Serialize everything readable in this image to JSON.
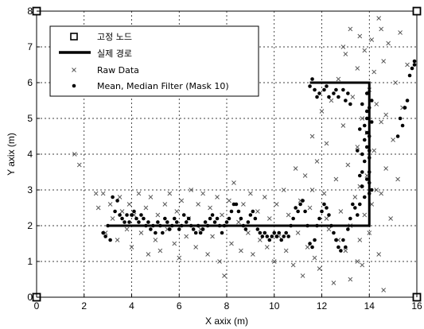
{
  "chart_data": {
    "type": "scatter",
    "title": "",
    "xlabel": "X axix (m)",
    "ylabel": "Y axix (m)",
    "xlim": [
      0,
      16
    ],
    "ylim": [
      0,
      8
    ],
    "xticks": [
      0,
      2,
      4,
      6,
      8,
      10,
      12,
      14,
      16
    ],
    "yticks": [
      0,
      1,
      2,
      3,
      4,
      5,
      6,
      7,
      8
    ],
    "grid": true,
    "legend_position": "top-left",
    "series": [
      {
        "name": "고정 노드",
        "marker": "square",
        "color": "#000000",
        "points": [
          [
            0,
            0
          ],
          [
            0,
            8
          ],
          [
            16,
            8
          ],
          [
            16,
            0
          ]
        ]
      },
      {
        "name": "실제 경로",
        "marker": "line",
        "color": "#000000",
        "points": [
          [
            3,
            2
          ],
          [
            14,
            2
          ],
          [
            14,
            6
          ],
          [
            11.5,
            6
          ]
        ]
      },
      {
        "name": "Raw Data",
        "marker": "x",
        "color": "#555555",
        "points": [
          [
            1.6,
            4.0
          ],
          [
            1.8,
            3.7
          ],
          [
            2.5,
            2.9
          ],
          [
            2.6,
            2.5
          ],
          [
            2.8,
            2.9
          ],
          [
            2.9,
            1.8
          ],
          [
            3.1,
            2.6
          ],
          [
            3.2,
            2.2
          ],
          [
            3.4,
            1.6
          ],
          [
            3.5,
            2.8
          ],
          [
            3.6,
            2.4
          ],
          [
            3.8,
            1.9
          ],
          [
            3.9,
            2.6
          ],
          [
            4.0,
            1.4
          ],
          [
            4.1,
            2.3
          ],
          [
            4.3,
            2.9
          ],
          [
            4.4,
            1.8
          ],
          [
            4.6,
            2.5
          ],
          [
            4.7,
            1.2
          ],
          [
            4.8,
            2.8
          ],
          [
            5.0,
            1.6
          ],
          [
            5.1,
            2.3
          ],
          [
            5.2,
            1.3
          ],
          [
            5.4,
            2.6
          ],
          [
            5.5,
            1.9
          ],
          [
            5.6,
            2.9
          ],
          [
            5.8,
            1.5
          ],
          [
            5.9,
            2.4
          ],
          [
            6.0,
            1.1
          ],
          [
            6.1,
            2.7
          ],
          [
            6.3,
            1.7
          ],
          [
            6.4,
            2.2
          ],
          [
            6.5,
            3.0
          ],
          [
            6.7,
            1.4
          ],
          [
            6.8,
            2.6
          ],
          [
            6.9,
            1.9
          ],
          [
            7.0,
            2.9
          ],
          [
            7.2,
            1.2
          ],
          [
            7.3,
            2.5
          ],
          [
            7.4,
            1.7
          ],
          [
            7.6,
            2.8
          ],
          [
            7.7,
            1.0
          ],
          [
            7.8,
            2.3
          ],
          [
            7.9,
            0.6
          ],
          [
            8.1,
            2.7
          ],
          [
            8.2,
            1.5
          ],
          [
            8.3,
            3.2
          ],
          [
            8.5,
            2.1
          ],
          [
            8.6,
            1.3
          ],
          [
            8.7,
            2.6
          ],
          [
            8.9,
            1.8
          ],
          [
            9.0,
            2.9
          ],
          [
            9.1,
            1.2
          ],
          [
            9.3,
            2.4
          ],
          [
            9.4,
            1.6
          ],
          [
            9.6,
            2.8
          ],
          [
            9.7,
            1.4
          ],
          [
            9.8,
            2.2
          ],
          [
            10.0,
            1.0
          ],
          [
            10.1,
            2.6
          ],
          [
            10.2,
            1.7
          ],
          [
            10.4,
            3.0
          ],
          [
            10.5,
            1.3
          ],
          [
            10.6,
            2.3
          ],
          [
            10.8,
            0.9
          ],
          [
            10.9,
            3.6
          ],
          [
            11.0,
            1.8
          ],
          [
            11.1,
            2.7
          ],
          [
            11.2,
            0.6
          ],
          [
            11.3,
            3.4
          ],
          [
            11.4,
            1.4
          ],
          [
            11.5,
            2.5
          ],
          [
            11.6,
            4.5
          ],
          [
            11.7,
            1.1
          ],
          [
            11.8,
            3.8
          ],
          [
            11.9,
            0.8
          ],
          [
            12.0,
            5.2
          ],
          [
            12.1,
            2.9
          ],
          [
            12.2,
            4.3
          ],
          [
            12.3,
            1.9
          ],
          [
            12.4,
            5.5
          ],
          [
            12.5,
            0.4
          ],
          [
            12.6,
            3.3
          ],
          [
            12.7,
            6.1
          ],
          [
            12.8,
            2.4
          ],
          [
            12.9,
            4.8
          ],
          [
            13.0,
            1.3
          ],
          [
            13.0,
            6.8
          ],
          [
            13.1,
            3.7
          ],
          [
            13.2,
            0.5
          ],
          [
            13.2,
            7.5
          ],
          [
            13.3,
            5.6
          ],
          [
            13.4,
            2.8
          ],
          [
            13.5,
            4.2
          ],
          [
            13.5,
            6.4
          ],
          [
            13.6,
            1.6
          ],
          [
            13.6,
            3.1
          ],
          [
            13.7,
            5.0
          ],
          [
            13.7,
            0.9
          ],
          [
            13.8,
            6.9
          ],
          [
            13.8,
            2.3
          ],
          [
            13.9,
            4.6
          ],
          [
            13.9,
            3.4
          ],
          [
            14.0,
            5.8
          ],
          [
            14.0,
            1.8
          ],
          [
            14.1,
            7.2
          ],
          [
            14.1,
            2.6
          ],
          [
            14.2,
            4.1
          ],
          [
            14.2,
            6.3
          ],
          [
            14.3,
            3.0
          ],
          [
            14.3,
            5.4
          ],
          [
            14.4,
            1.2
          ],
          [
            14.4,
            7.8
          ],
          [
            14.5,
            2.9
          ],
          [
            14.5,
            4.9
          ],
          [
            14.6,
            0.2
          ],
          [
            14.6,
            6.6
          ],
          [
            14.7,
            3.6
          ],
          [
            14.7,
            5.1
          ],
          [
            14.8,
            7.1
          ],
          [
            14.9,
            2.2
          ],
          [
            15.0,
            4.4
          ],
          [
            15.1,
            6.0
          ],
          [
            15.2,
            3.3
          ],
          [
            15.3,
            7.4
          ],
          [
            15.4,
            5.3
          ],
          [
            15.6,
            6.5
          ],
          [
            13.5,
            1.0
          ],
          [
            13.2,
            2.0
          ],
          [
            12.7,
            1.6
          ],
          [
            11.6,
            3.0
          ],
          [
            12.2,
            2.2
          ],
          [
            13.6,
            7.3
          ],
          [
            12.9,
            7.0
          ],
          [
            14.5,
            7.5
          ]
        ]
      },
      {
        "name": "Mean, Median Filter (Mask 10)",
        "marker": "dot",
        "color": "#000000",
        "points": [
          [
            2.8,
            1.8
          ],
          [
            2.9,
            1.7
          ],
          [
            3.0,
            2.0
          ],
          [
            3.1,
            1.6
          ],
          [
            3.2,
            2.8
          ],
          [
            3.3,
            2.4
          ],
          [
            3.4,
            2.7
          ],
          [
            3.5,
            2.3
          ],
          [
            3.6,
            2.2
          ],
          [
            3.7,
            2.1
          ],
          [
            3.8,
            2.3
          ],
          [
            3.9,
            2.1
          ],
          [
            4.0,
            2.3
          ],
          [
            4.1,
            2.4
          ],
          [
            4.2,
            2.2
          ],
          [
            4.3,
            2.1
          ],
          [
            4.4,
            2.3
          ],
          [
            4.5,
            2.2
          ],
          [
            4.6,
            2.0
          ],
          [
            4.7,
            2.1
          ],
          [
            4.8,
            1.9
          ],
          [
            4.9,
            2.0
          ],
          [
            5.0,
            1.8
          ],
          [
            5.1,
            2.1
          ],
          [
            5.2,
            2.0
          ],
          [
            5.3,
            1.8
          ],
          [
            5.4,
            2.2
          ],
          [
            5.5,
            2.1
          ],
          [
            5.6,
            1.9
          ],
          [
            5.7,
            2.0
          ],
          [
            5.8,
            2.2
          ],
          [
            5.9,
            2.1
          ],
          [
            6.0,
            1.9
          ],
          [
            6.1,
            2.0
          ],
          [
            6.2,
            2.3
          ],
          [
            6.3,
            2.1
          ],
          [
            6.4,
            2.2
          ],
          [
            6.5,
            2.0
          ],
          [
            6.6,
            1.9
          ],
          [
            6.7,
            1.8
          ],
          [
            6.8,
            2.0
          ],
          [
            6.9,
            1.8
          ],
          [
            7.0,
            1.9
          ],
          [
            7.1,
            2.1
          ],
          [
            7.2,
            2.0
          ],
          [
            7.3,
            2.2
          ],
          [
            7.4,
            2.3
          ],
          [
            7.5,
            2.1
          ],
          [
            7.6,
            2.2
          ],
          [
            7.7,
            2.0
          ],
          [
            7.8,
            1.8
          ],
          [
            7.9,
            2.0
          ],
          [
            8.0,
            2.1
          ],
          [
            8.1,
            2.2
          ],
          [
            8.2,
            2.4
          ],
          [
            8.3,
            2.6
          ],
          [
            8.4,
            2.6
          ],
          [
            8.5,
            2.4
          ],
          [
            8.6,
            2.2
          ],
          [
            8.7,
            2.0
          ],
          [
            8.8,
            1.9
          ],
          [
            8.9,
            2.1
          ],
          [
            9.0,
            2.3
          ],
          [
            9.1,
            2.4
          ],
          [
            9.2,
            2.2
          ],
          [
            9.3,
            1.9
          ],
          [
            9.4,
            1.8
          ],
          [
            9.5,
            1.7
          ],
          [
            9.6,
            1.8
          ],
          [
            9.7,
            1.7
          ],
          [
            9.8,
            1.6
          ],
          [
            9.9,
            1.7
          ],
          [
            10.0,
            1.8
          ],
          [
            10.1,
            1.7
          ],
          [
            10.2,
            1.8
          ],
          [
            10.3,
            1.6
          ],
          [
            10.4,
            1.7
          ],
          [
            10.5,
            1.8
          ],
          [
            10.6,
            1.7
          ],
          [
            10.7,
            2.0
          ],
          [
            10.8,
            2.2
          ],
          [
            10.9,
            2.5
          ],
          [
            11.0,
            2.4
          ],
          [
            11.1,
            2.6
          ],
          [
            11.2,
            2.7
          ],
          [
            11.3,
            2.4
          ],
          [
            11.4,
            2.0
          ],
          [
            11.5,
            1.5
          ],
          [
            11.6,
            1.4
          ],
          [
            11.7,
            1.6
          ],
          [
            11.8,
            2.0
          ],
          [
            11.9,
            2.2
          ],
          [
            12.0,
            2.4
          ],
          [
            12.1,
            2.6
          ],
          [
            12.2,
            2.5
          ],
          [
            12.3,
            2.3
          ],
          [
            12.4,
            2.0
          ],
          [
            12.5,
            1.8
          ],
          [
            12.6,
            1.6
          ],
          [
            12.7,
            1.4
          ],
          [
            12.8,
            1.3
          ],
          [
            12.9,
            1.6
          ],
          [
            13.0,
            1.4
          ],
          [
            13.1,
            1.9
          ],
          [
            13.2,
            2.2
          ],
          [
            13.3,
            2.6
          ],
          [
            13.4,
            2.5
          ],
          [
            13.5,
            2.3
          ],
          [
            13.6,
            2.6
          ],
          [
            13.7,
            3.1
          ],
          [
            13.7,
            3.5
          ],
          [
            13.7,
            4.0
          ],
          [
            13.8,
            4.4
          ],
          [
            13.8,
            4.8
          ],
          [
            13.9,
            5.2
          ],
          [
            13.9,
            5.0
          ],
          [
            13.9,
            4.6
          ],
          [
            13.9,
            4.2
          ],
          [
            14.0,
            3.9
          ],
          [
            14.0,
            3.5
          ],
          [
            14.0,
            3.2
          ],
          [
            14.0,
            2.9
          ],
          [
            14.0,
            4.1
          ],
          [
            14.0,
            4.5
          ],
          [
            14.0,
            5.3
          ],
          [
            13.9,
            5.7
          ],
          [
            13.9,
            3.3
          ],
          [
            13.8,
            2.8
          ],
          [
            13.8,
            3.8
          ],
          [
            14.1,
            4.9
          ],
          [
            14.1,
            5.5
          ],
          [
            14.1,
            3.0
          ],
          [
            13.6,
            3.4
          ],
          [
            13.6,
            4.7
          ],
          [
            13.7,
            5.4
          ],
          [
            13.5,
            4.1
          ],
          [
            11.5,
            5.9
          ],
          [
            11.7,
            5.8
          ],
          [
            11.9,
            5.7
          ],
          [
            12.1,
            5.8
          ],
          [
            12.3,
            5.6
          ],
          [
            12.5,
            5.7
          ],
          [
            12.7,
            5.6
          ],
          [
            12.9,
            5.8
          ],
          [
            13.0,
            5.5
          ],
          [
            13.1,
            5.7
          ],
          [
            13.2,
            5.4
          ],
          [
            11.6,
            6.1
          ],
          [
            11.8,
            5.6
          ],
          [
            12.2,
            5.9
          ],
          [
            12.6,
            5.8
          ],
          [
            15.3,
            5.0
          ],
          [
            15.4,
            4.8
          ],
          [
            15.5,
            5.3
          ],
          [
            15.6,
            5.5
          ],
          [
            15.2,
            4.5
          ],
          [
            15.8,
            6.4
          ],
          [
            15.9,
            6.6
          ],
          [
            15.9,
            6.5
          ],
          [
            15.7,
            6.2
          ]
        ]
      }
    ]
  }
}
